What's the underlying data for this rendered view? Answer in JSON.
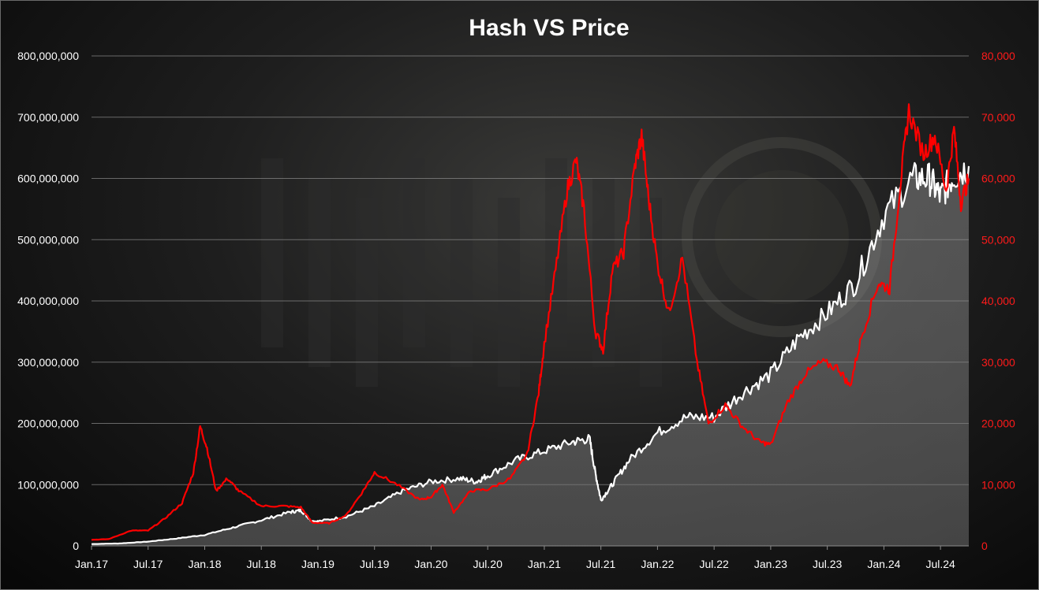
{
  "chart_data": {
    "type": "line",
    "title": "Hash VS Price",
    "x_ticks": [
      "Jan.17",
      "Jul.17",
      "Jan.18",
      "Jul.18",
      "Jan.19",
      "Jul.19",
      "Jan.20",
      "Jul.20",
      "Jan.21",
      "Jul.21",
      "Jan.22",
      "Jul.22",
      "Jan.23",
      "Jul.23",
      "Jan.24",
      "Jul.24"
    ],
    "x_range": [
      2017.0,
      2024.75
    ],
    "y_left": {
      "range": [
        0,
        800000000
      ],
      "ticks": [
        "0",
        "100,000,000",
        "200,000,000",
        "300,000,000",
        "400,000,000",
        "500,000,000",
        "600,000,000",
        "700,000,000",
        "800,000,000"
      ],
      "color": "#ffffff"
    },
    "y_right": {
      "range": [
        0,
        80000
      ],
      "ticks": [
        "0",
        "10,000",
        "20,000",
        "30,000",
        "40,000",
        "50,000",
        "60,000",
        "70,000",
        "80,000"
      ],
      "color": "#ff0000"
    },
    "grid": true,
    "series": [
      {
        "axis": "left",
        "color": "#ffffff",
        "fill": "#8a8a8a",
        "points": [
          [
            2017.0,
            3000000
          ],
          [
            2017.25,
            4000000
          ],
          [
            2017.5,
            7000000
          ],
          [
            2017.75,
            12000000
          ],
          [
            2018.0,
            18000000
          ],
          [
            2018.25,
            30000000
          ],
          [
            2018.5,
            42000000
          ],
          [
            2018.75,
            55000000
          ],
          [
            2018.85,
            58000000
          ],
          [
            2018.95,
            40000000
          ],
          [
            2019.0,
            40000000
          ],
          [
            2019.25,
            48000000
          ],
          [
            2019.5,
            65000000
          ],
          [
            2019.75,
            90000000
          ],
          [
            2020.0,
            105000000
          ],
          [
            2020.25,
            110000000
          ],
          [
            2020.4,
            105000000
          ],
          [
            2020.5,
            115000000
          ],
          [
            2020.75,
            140000000
          ],
          [
            2021.0,
            155000000
          ],
          [
            2021.25,
            170000000
          ],
          [
            2021.4,
            175000000
          ],
          [
            2021.45,
            120000000
          ],
          [
            2021.5,
            75000000
          ],
          [
            2021.6,
            100000000
          ],
          [
            2021.75,
            140000000
          ],
          [
            2022.0,
            185000000
          ],
          [
            2022.25,
            210000000
          ],
          [
            2022.5,
            210000000
          ],
          [
            2022.75,
            250000000
          ],
          [
            2023.0,
            280000000
          ],
          [
            2023.25,
            340000000
          ],
          [
            2023.5,
            380000000
          ],
          [
            2023.75,
            430000000
          ],
          [
            2024.0,
            540000000
          ],
          [
            2024.25,
            600000000
          ],
          [
            2024.4,
            600000000
          ],
          [
            2024.5,
            570000000
          ],
          [
            2024.6,
            600000000
          ],
          [
            2024.75,
            620000000
          ]
        ]
      },
      {
        "axis": "right",
        "color": "#ff0000",
        "points": [
          [
            2017.0,
            1000
          ],
          [
            2017.15,
            1100
          ],
          [
            2017.35,
            2500
          ],
          [
            2017.5,
            2500
          ],
          [
            2017.65,
            4500
          ],
          [
            2017.8,
            7000
          ],
          [
            2017.9,
            12000
          ],
          [
            2017.96,
            19500
          ],
          [
            2018.02,
            16000
          ],
          [
            2018.1,
            9000
          ],
          [
            2018.2,
            11000
          ],
          [
            2018.3,
            9000
          ],
          [
            2018.5,
            6500
          ],
          [
            2018.7,
            6500
          ],
          [
            2018.85,
            6300
          ],
          [
            2018.95,
            3800
          ],
          [
            2019.1,
            3700
          ],
          [
            2019.25,
            5000
          ],
          [
            2019.4,
            9000
          ],
          [
            2019.5,
            12000
          ],
          [
            2019.7,
            10000
          ],
          [
            2019.9,
            7500
          ],
          [
            2020.0,
            8000
          ],
          [
            2020.1,
            10000
          ],
          [
            2020.2,
            5500
          ],
          [
            2020.35,
            9000
          ],
          [
            2020.5,
            9200
          ],
          [
            2020.7,
            11000
          ],
          [
            2020.85,
            15000
          ],
          [
            2020.95,
            25000
          ],
          [
            2021.0,
            33000
          ],
          [
            2021.1,
            45000
          ],
          [
            2021.2,
            58000
          ],
          [
            2021.28,
            63000
          ],
          [
            2021.35,
            55000
          ],
          [
            2021.45,
            35000
          ],
          [
            2021.52,
            32000
          ],
          [
            2021.6,
            45000
          ],
          [
            2021.7,
            48000
          ],
          [
            2021.8,
            62000
          ],
          [
            2021.86,
            67000
          ],
          [
            2021.92,
            57000
          ],
          [
            2022.0,
            46000
          ],
          [
            2022.1,
            38000
          ],
          [
            2022.22,
            47000
          ],
          [
            2022.35,
            30000
          ],
          [
            2022.45,
            20000
          ],
          [
            2022.6,
            23000
          ],
          [
            2022.75,
            19500
          ],
          [
            2022.9,
            17000
          ],
          [
            2023.0,
            16500
          ],
          [
            2023.15,
            23500
          ],
          [
            2023.3,
            28000
          ],
          [
            2023.45,
            30000
          ],
          [
            2023.6,
            29000
          ],
          [
            2023.7,
            26000
          ],
          [
            2023.8,
            34000
          ],
          [
            2023.95,
            43000
          ],
          [
            2024.05,
            42000
          ],
          [
            2024.15,
            60000
          ],
          [
            2024.22,
            71000
          ],
          [
            2024.35,
            64000
          ],
          [
            2024.45,
            67000
          ],
          [
            2024.55,
            58000
          ],
          [
            2024.62,
            68000
          ],
          [
            2024.68,
            56000
          ],
          [
            2024.75,
            60000
          ]
        ]
      }
    ]
  }
}
